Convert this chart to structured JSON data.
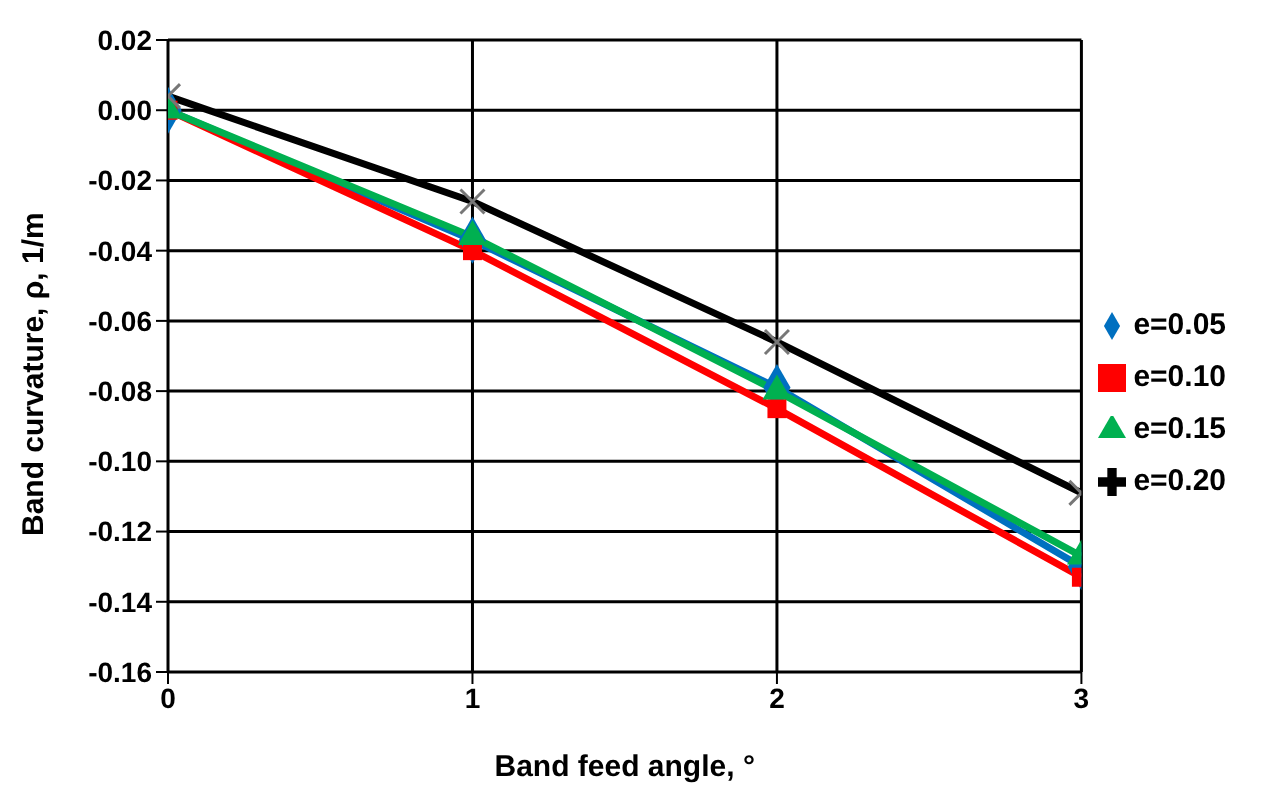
{
  "chart_data": {
    "type": "line",
    "xlabel": "Band feed angle, °",
    "ylabel": "Band curvature, ρ, 1/m",
    "x": [
      0,
      1,
      2,
      3
    ],
    "xlim": [
      0,
      3
    ],
    "xticks": [
      0,
      1,
      2,
      3
    ],
    "ylim": [
      -0.16,
      0.02
    ],
    "yticks": [
      -0.16,
      -0.14,
      -0.12,
      {
        "value": -0.1,
        "label": "-0.10"
      },
      -0.08,
      -0.06,
      -0.04,
      -0.02,
      {
        "value": 0,
        "label": "0.00"
      },
      0.02
    ],
    "grid": true,
    "legend": "right",
    "line_style": "solid",
    "series": [
      {
        "name": "e=0.05",
        "color": "#0070c0",
        "marker": "diamond",
        "values": [
          0,
          -0.037,
          -0.079,
          -0.13
        ]
      },
      {
        "name": "e=0.10",
        "color": "#ff0000",
        "marker": "square",
        "values": [
          0,
          -0.04,
          -0.085,
          -0.133
        ]
      },
      {
        "name": "e=0.15",
        "color": "#00b050",
        "marker": "triangle",
        "values": [
          0,
          -0.036,
          -0.08,
          -0.127
        ]
      },
      {
        "name": "e=0.20",
        "color": "#000000",
        "marker": "cross",
        "values": [
          0.004,
          -0.026,
          -0.066,
          -0.109
        ]
      }
    ]
  }
}
